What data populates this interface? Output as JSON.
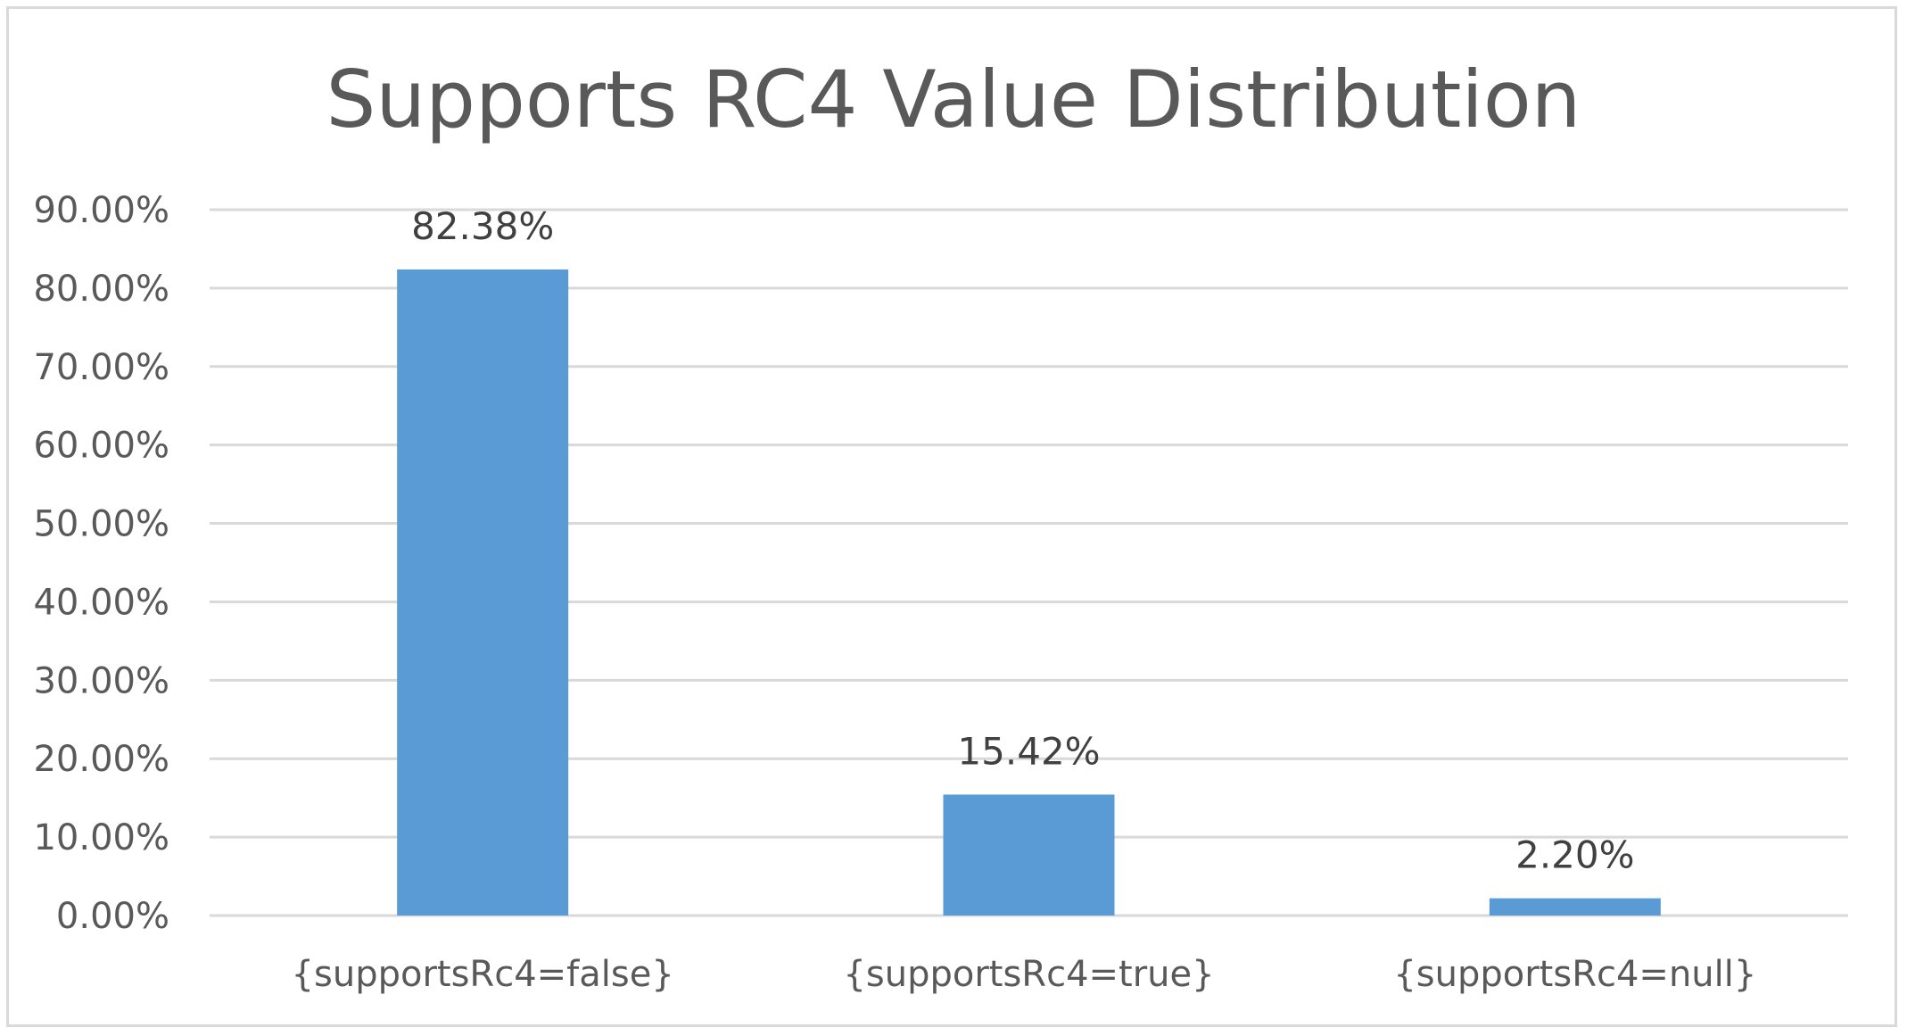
{
  "chart_data": {
    "type": "bar",
    "title": "Supports RC4 Value Distribution",
    "categories": [
      "{supportsRc4=false}",
      "{supportsRc4=true}",
      "{supportsRc4=null}"
    ],
    "values": [
      82.38,
      15.42,
      2.2
    ],
    "data_labels": [
      "82.38%",
      "15.42%",
      "2.20%"
    ],
    "y_ticks": [
      "0.00%",
      "10.00%",
      "20.00%",
      "30.00%",
      "40.00%",
      "50.00%",
      "60.00%",
      "70.00%",
      "80.00%",
      "90.00%"
    ],
    "ylim": [
      0,
      90
    ],
    "grid": true,
    "legend": "none",
    "bar_color": "#5b9bd5",
    "grid_color": "#d9d9d9"
  }
}
